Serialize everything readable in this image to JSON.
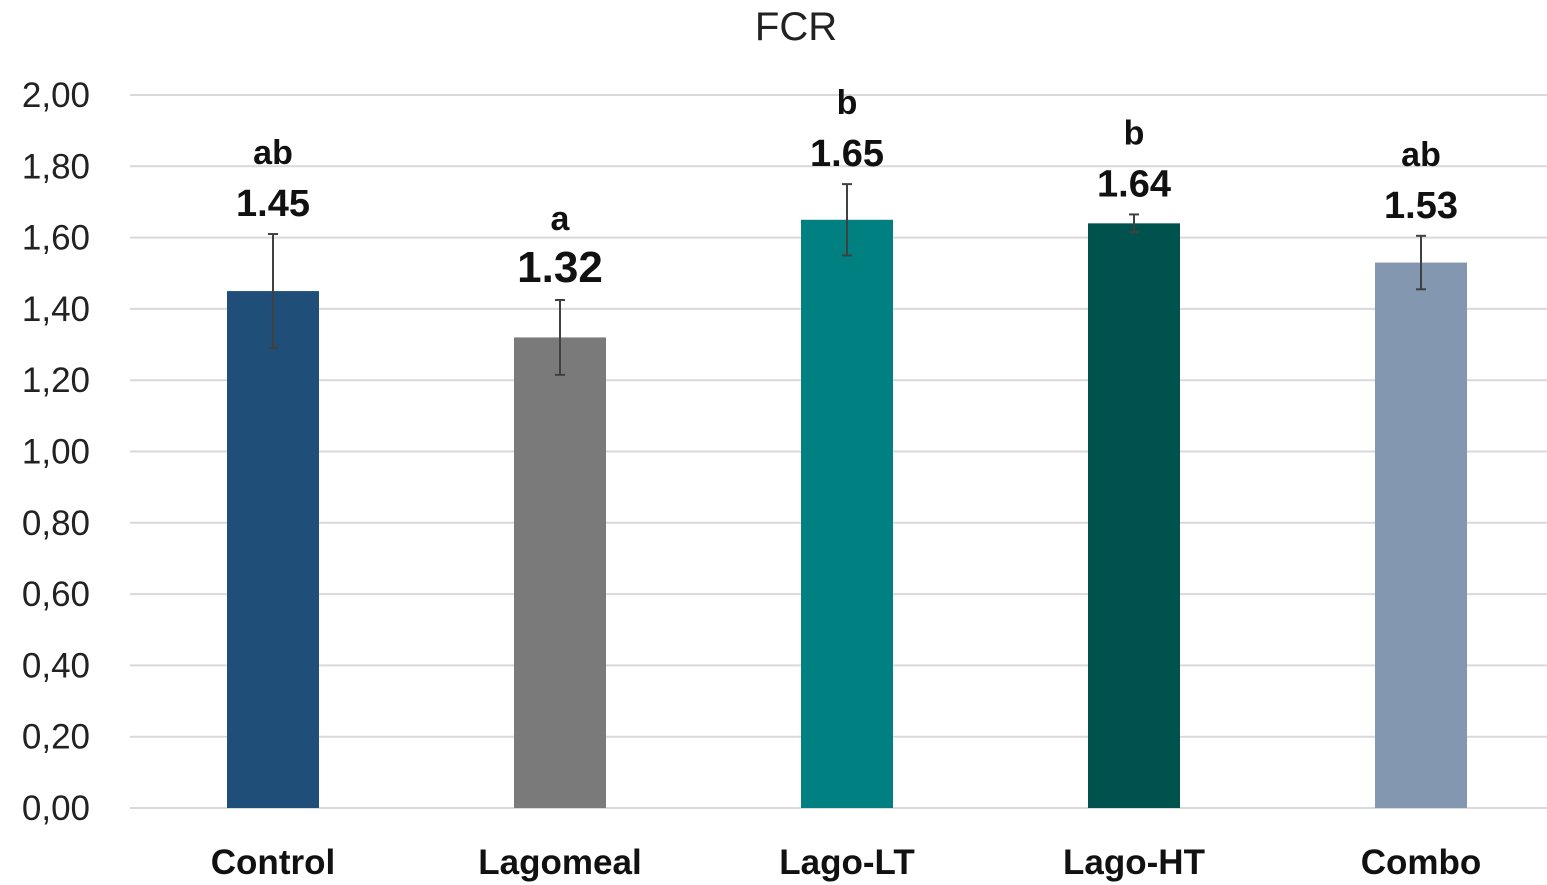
{
  "chart_data": {
    "type": "bar",
    "title": "FCR",
    "xlabel": "",
    "ylabel": "",
    "ylim": [
      0,
      2.0
    ],
    "yticks": [
      "0,00",
      "0,20",
      "0,40",
      "0,60",
      "0,80",
      "1,00",
      "1,20",
      "1,40",
      "1,60",
      "1,80",
      "2,00"
    ],
    "ytick_values": [
      0,
      0.2,
      0.4,
      0.6,
      0.8,
      1.0,
      1.2,
      1.4,
      1.6,
      1.8,
      2.0
    ],
    "grid": true,
    "legend": "none",
    "categories": [
      "Control",
      "Lagomeal",
      "Lago-LT",
      "Lago-HT",
      "Combo"
    ],
    "values": [
      1.45,
      1.32,
      1.65,
      1.64,
      1.53
    ],
    "value_labels": [
      "1.45",
      "1.32",
      "1.65",
      "1.64",
      "1.53"
    ],
    "error": [
      0.16,
      0.105,
      0.1,
      0.025,
      0.075
    ],
    "significance": [
      "ab",
      "a",
      "b",
      "b",
      "ab"
    ],
    "colors": [
      "#1f4e79",
      "#7a7a7a",
      "#008080",
      "#00524f",
      "#8497b0"
    ]
  }
}
